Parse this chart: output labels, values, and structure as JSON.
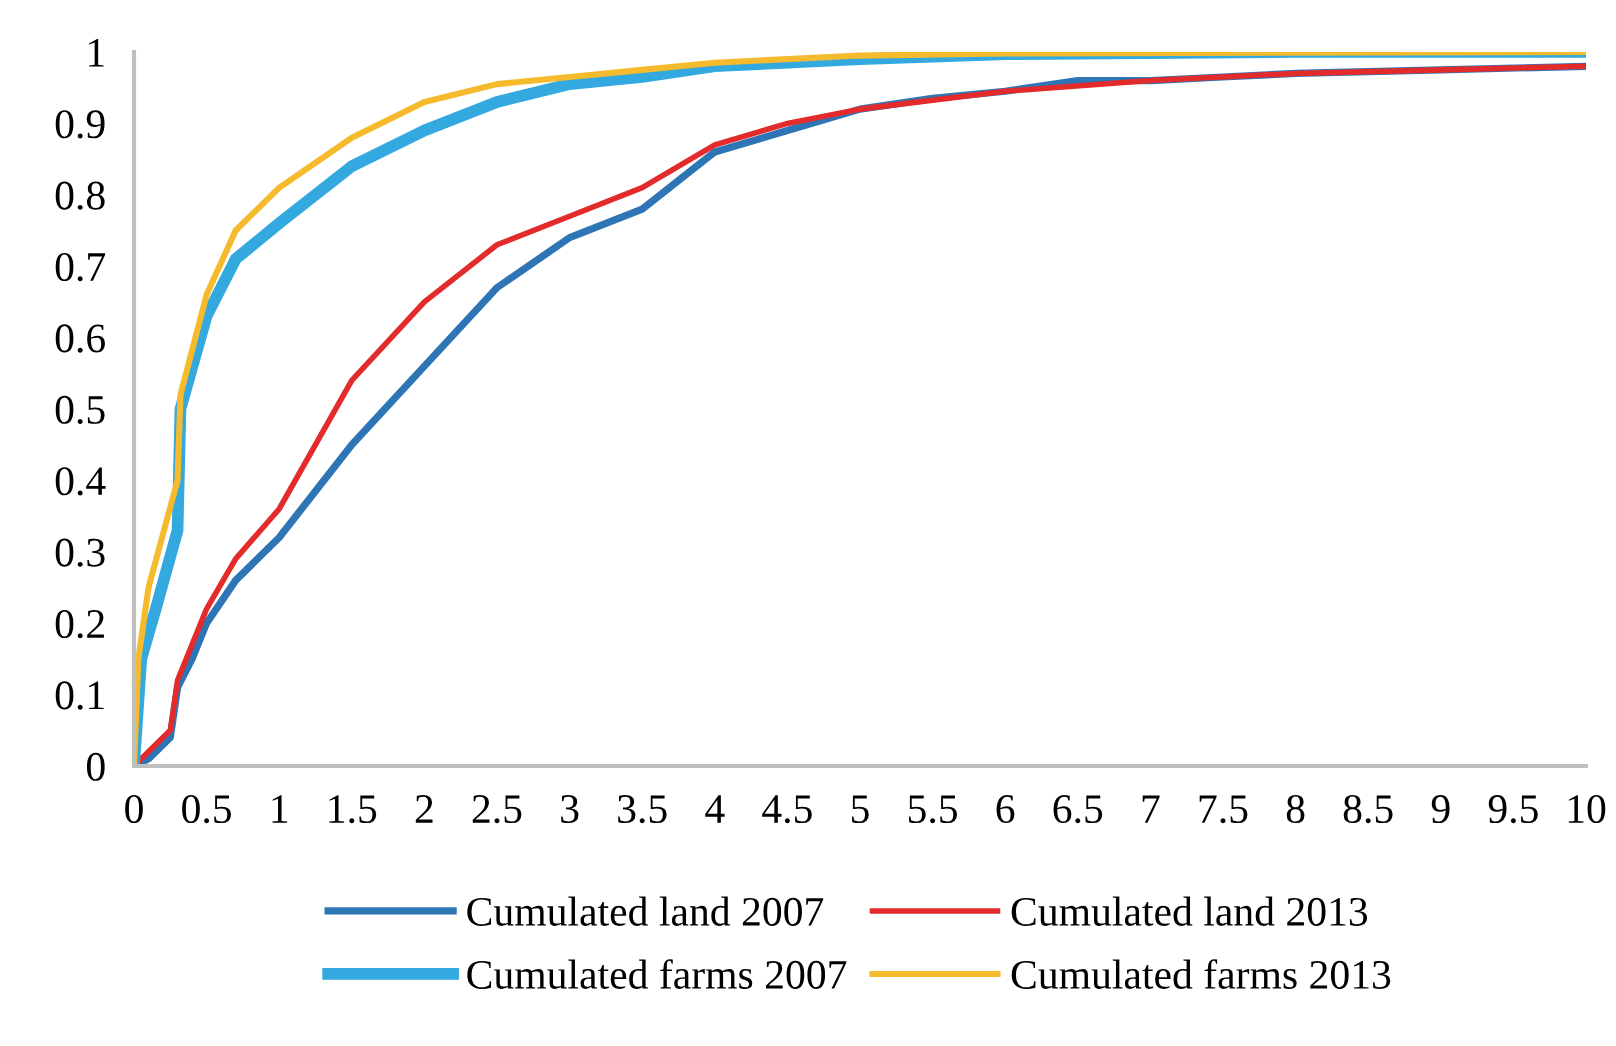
{
  "chart_data": {
    "type": "line",
    "xlim": [
      0,
      10
    ],
    "ylim": [
      0,
      1
    ],
    "xticks": [
      0,
      0.5,
      1,
      1.5,
      2,
      2.5,
      3,
      3.5,
      4,
      4.5,
      5,
      5.5,
      6,
      6.5,
      7,
      7.5,
      8,
      8.5,
      9,
      9.5,
      10
    ],
    "yticks": [
      0,
      0.1,
      0.2,
      0.3,
      0.4,
      0.5,
      0.6,
      0.7,
      0.8,
      0.9,
      1
    ],
    "grid": false,
    "legend": "bottom",
    "marker": "none",
    "line_style": "solid",
    "series": [
      {
        "name": "Cumulated land 2007",
        "color": "#2e75b6",
        "x": [
          0,
          0.1,
          0.25,
          0.3,
          0.4,
          0.5,
          0.7,
          1.0,
          1.5,
          2.0,
          2.5,
          3.0,
          3.5,
          4.0,
          4.5,
          5.0,
          5.5,
          6.0,
          6.5,
          7,
          7.5,
          8,
          9,
          10
        ],
        "values": [
          0,
          0.01,
          0.04,
          0.11,
          0.15,
          0.2,
          0.26,
          0.32,
          0.45,
          0.56,
          0.67,
          0.74,
          0.78,
          0.86,
          0.89,
          0.92,
          0.935,
          0.945,
          0.96,
          0.96,
          0.965,
          0.97,
          0.975,
          0.98
        ]
      },
      {
        "name": "Cumulated land 2013",
        "color": "#e32b2b",
        "x": [
          0,
          0.25,
          0.3,
          0.5,
          0.7,
          1.0,
          1.5,
          2.0,
          2.5,
          3.0,
          3.5,
          4.0,
          4.5,
          5.0,
          6,
          7,
          8,
          9,
          10
        ],
        "values": [
          0,
          0.05,
          0.12,
          0.22,
          0.29,
          0.36,
          0.54,
          0.65,
          0.73,
          0.77,
          0.81,
          0.87,
          0.9,
          0.92,
          0.945,
          0.96,
          0.97,
          0.975,
          0.98
        ]
      },
      {
        "name": "Cumulated farms 2007",
        "color": "#33a9e0",
        "x": [
          0,
          0.05,
          0.15,
          0.3,
          0.32,
          0.5,
          0.7,
          1.0,
          1.5,
          2.0,
          2.5,
          3.0,
          3.5,
          4,
          5,
          6,
          8,
          10
        ],
        "values": [
          0,
          0.15,
          0.22,
          0.33,
          0.5,
          0.63,
          0.71,
          0.76,
          0.84,
          0.89,
          0.93,
          0.955,
          0.965,
          0.98,
          0.99,
          0.997,
          1,
          1
        ]
      },
      {
        "name": "Cumulated farms 2013",
        "color": "#f5bb2d",
        "x": [
          0,
          0.03,
          0.1,
          0.3,
          0.32,
          0.5,
          0.7,
          1.0,
          1.5,
          2.0,
          2.5,
          3.0,
          3.5,
          4,
          5,
          6,
          10
        ],
        "values": [
          0,
          0.15,
          0.25,
          0.4,
          0.52,
          0.66,
          0.75,
          0.81,
          0.88,
          0.93,
          0.955,
          0.965,
          0.975,
          0.985,
          0.995,
          0.998,
          1
        ]
      }
    ]
  }
}
